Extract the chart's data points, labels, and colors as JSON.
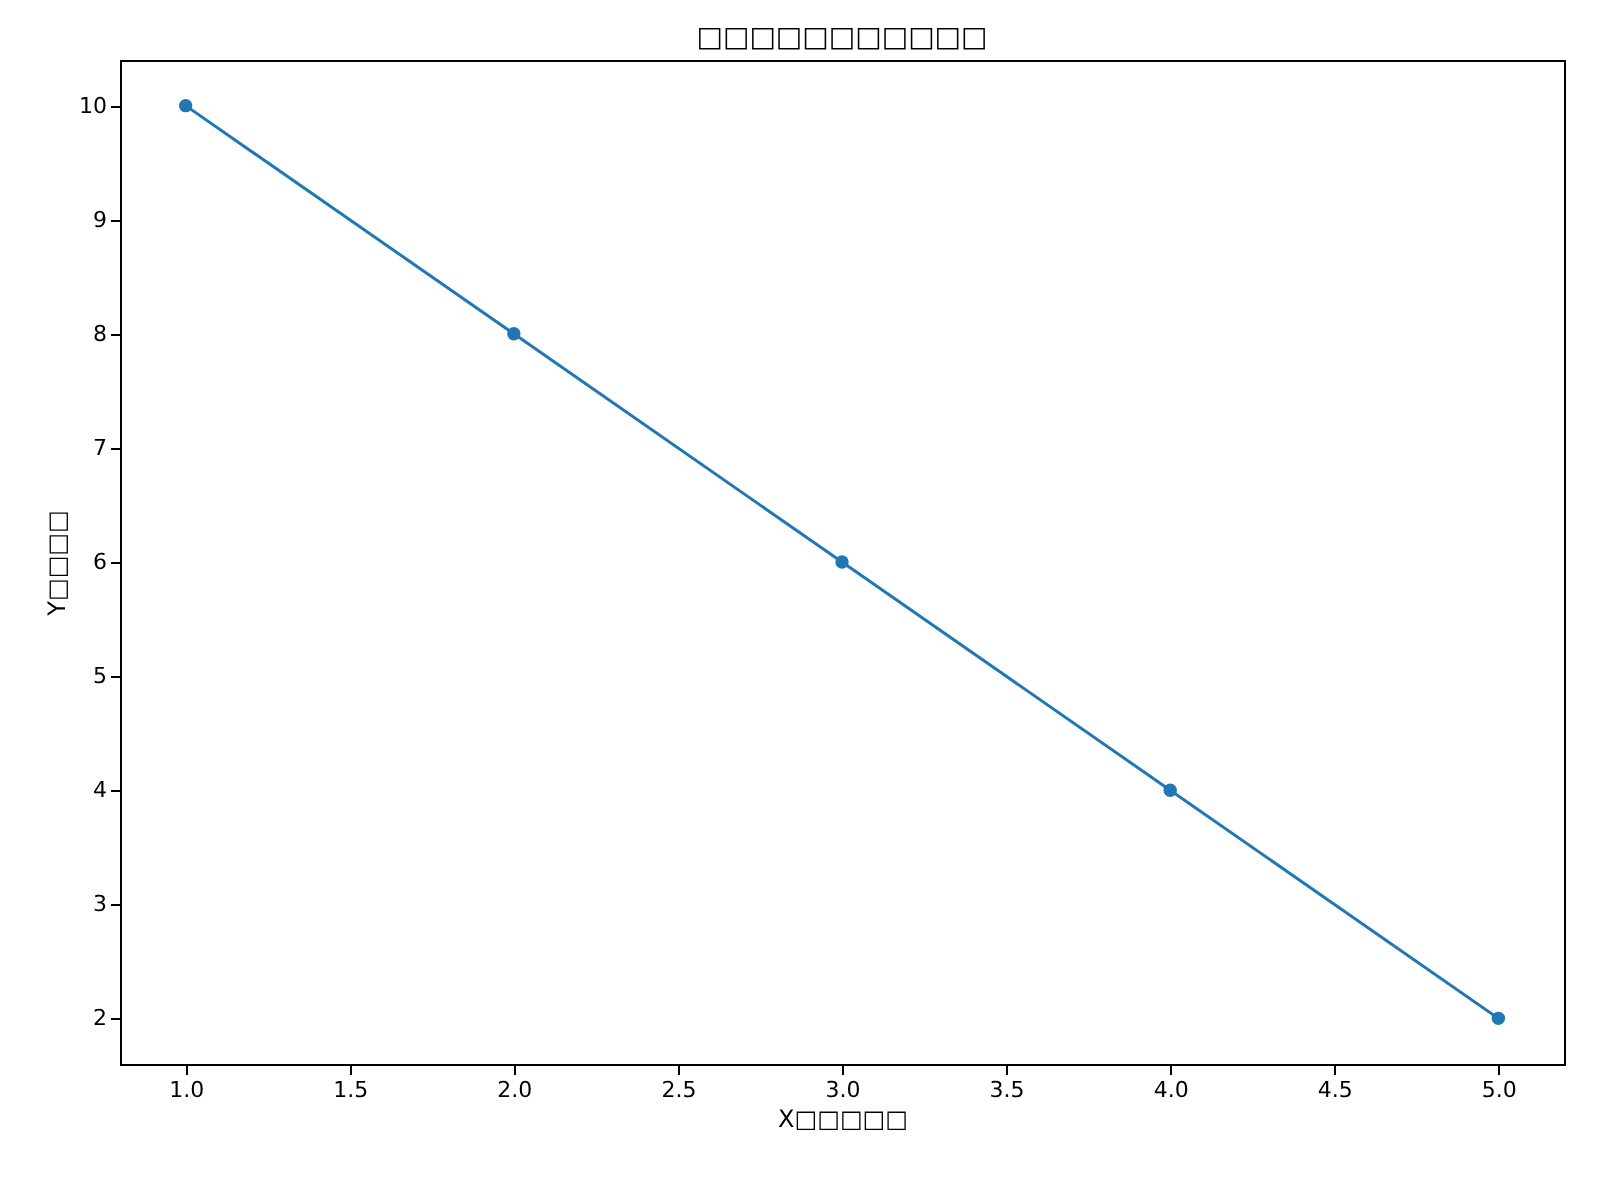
{
  "chart_data": {
    "type": "line",
    "title": "□□□□□□□□□□□",
    "xlabel": "X□□□□□",
    "ylabel": "Y□□□□",
    "x": [
      1,
      2,
      3,
      4,
      5
    ],
    "series": [
      {
        "color": "#1f77b4",
        "values": [
          10,
          8,
          6,
          4,
          2
        ]
      }
    ],
    "xlim": [
      0.8,
      5.2
    ],
    "xticks": [
      {
        "value": 1,
        "label": "1.0"
      },
      {
        "value": 1.5,
        "label": "1.5"
      },
      {
        "value": 2,
        "label": "2.0"
      },
      {
        "value": 2.5,
        "label": "2.5"
      },
      {
        "value": 3,
        "label": "3.0"
      },
      {
        "value": 3.5,
        "label": "3.5"
      },
      {
        "value": 4,
        "label": "4.0"
      },
      {
        "value": 4.5,
        "label": "4.5"
      },
      {
        "value": 5,
        "label": "5.0"
      }
    ],
    "ylim": [
      1.6,
      10.4
    ],
    "yticks": [
      2,
      3,
      4,
      5,
      6,
      7,
      8,
      9,
      10
    ],
    "marker": "circle",
    "line_style": "solid",
    "grid": false
  }
}
